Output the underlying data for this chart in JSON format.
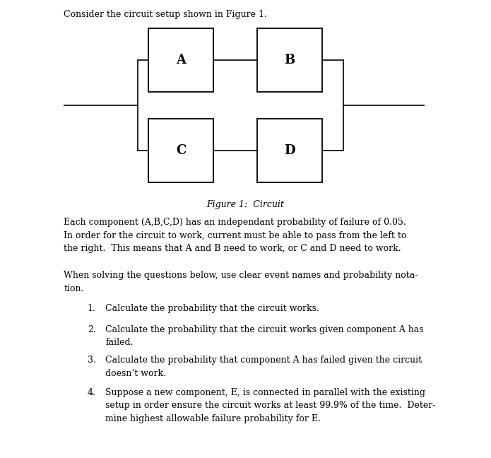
{
  "title_text": "Consider the circuit setup shown in Figure 1.",
  "figure_caption": "Figure 1:  Circuit",
  "body_text1": "Each component (A,B,C,D) has an independant probability of failure of 0.05.\nIn order for the circuit to work, current must be able to pass from the left to\nthe right.  This means that A and B need to work, or C and D need to work.",
  "body_text2": "When solving the questions below, use clear event names and probability nota-\ntion.",
  "item1": "Calculate the probability that the circuit works.",
  "item2": "Calculate the probability that the circuit works given component A has\nfailed.",
  "item3": "Calculate the probability that component A has failed given the circuit\ndoesn’t work.",
  "item4": "Suppose a new component, E, is connected in parallel with the existing\nsetup in order ensure the circuit works at least 99.9% of the time.  Deter-\nmine highest allowable failure probability for E.",
  "bg_color": "#ffffff",
  "text_color": "#000000",
  "box_color": "#000000",
  "font_size": 9.0,
  "font_size_label": 13,
  "component_labels": [
    "A",
    "B",
    "C",
    "D"
  ]
}
